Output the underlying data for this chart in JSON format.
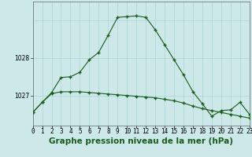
{
  "hours": [
    0,
    1,
    2,
    3,
    4,
    5,
    6,
    7,
    8,
    9,
    10,
    11,
    12,
    13,
    14,
    15,
    16,
    17,
    18,
    19,
    20,
    21,
    22,
    23
  ],
  "line_jagged": [
    1026.55,
    1026.82,
    1027.08,
    1027.48,
    1027.5,
    1027.62,
    1027.95,
    1028.15,
    1028.6,
    1029.08,
    1029.1,
    1029.12,
    1029.08,
    1028.75,
    1028.35,
    1027.95,
    1027.55,
    1027.1,
    1026.78,
    1026.45,
    1026.6,
    1026.62,
    1026.82,
    1026.5
  ],
  "line_smooth": [
    1026.55,
    1026.82,
    1027.05,
    1027.1,
    1027.1,
    1027.1,
    1027.08,
    1027.06,
    1027.04,
    1027.02,
    1027.0,
    1026.98,
    1026.96,
    1026.94,
    1026.9,
    1026.86,
    1026.8,
    1026.72,
    1026.65,
    1026.6,
    1026.55,
    1026.5,
    1026.45,
    1026.4
  ],
  "bg_color": "#cce8e8",
  "grid_color": "#aad4d4",
  "line_color": "#1a5c1a",
  "yticks": [
    1027,
    1028
  ],
  "xlabel": "Graphe pression niveau de la mer (hPa)",
  "ylim": [
    1026.2,
    1029.5
  ],
  "xlim": [
    0,
    23
  ],
  "tick_fontsize": 5.5,
  "xlabel_fontsize": 7.5,
  "marker": "+",
  "markersize": 3.5,
  "markeredgewidth": 1.0,
  "linewidth": 0.8
}
